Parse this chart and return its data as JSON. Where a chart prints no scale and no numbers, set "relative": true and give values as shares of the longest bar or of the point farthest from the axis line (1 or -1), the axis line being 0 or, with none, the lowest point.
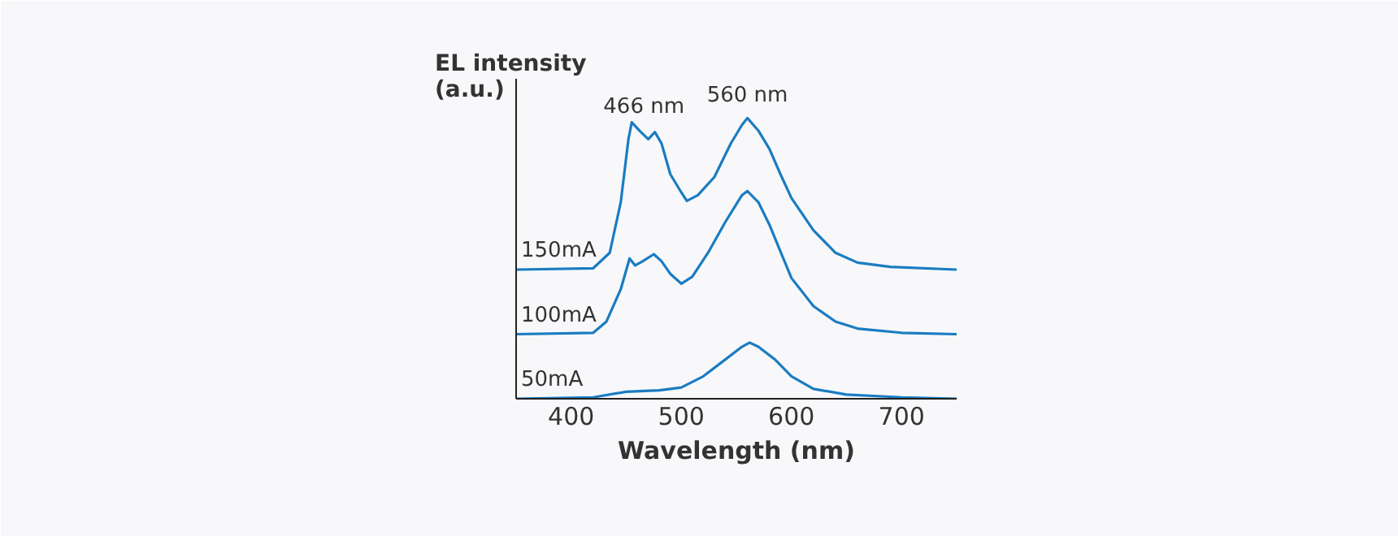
{
  "chart_data": {
    "type": "line",
    "relative": true,
    "xlabel": "Wavelength (nm)",
    "ylabel": "EL intensity\n(a.u.)",
    "xlim": [
      350,
      750
    ],
    "xticks": [
      400,
      500,
      600,
      700
    ],
    "tick_labels": "x",
    "grid": false,
    "legend": false,
    "marker": "none",
    "line_style": "solid",
    "annotations": [
      {
        "text": "466 nm",
        "x": 466,
        "y": 0.96
      },
      {
        "text": "560 nm",
        "x": 560,
        "y": 1.0
      }
    ],
    "series": [
      {
        "name": "150mA",
        "color": "#1a7cc2",
        "x": [
          350,
          420,
          435,
          445,
          452,
          455,
          462,
          470,
          476,
          482,
          490,
          500,
          505,
          515,
          530,
          545,
          555,
          560,
          570,
          580,
          590,
          600,
          620,
          640,
          660,
          690,
          750
        ],
        "values": [
          0.46,
          0.465,
          0.52,
          0.7,
          0.925,
          0.985,
          0.955,
          0.925,
          0.95,
          0.91,
          0.8,
          0.735,
          0.705,
          0.725,
          0.79,
          0.91,
          0.975,
          1.0,
          0.955,
          0.89,
          0.8,
          0.715,
          0.6,
          0.52,
          0.485,
          0.47,
          0.46
        ]
      },
      {
        "name": "100mA",
        "color": "#1a7cc2",
        "x": [
          350,
          420,
          432,
          445,
          453,
          458,
          465,
          475,
          482,
          490,
          500,
          510,
          525,
          540,
          555,
          560,
          570,
          580,
          590,
          600,
          620,
          640,
          660,
          700,
          750
        ],
        "values": [
          0.23,
          0.235,
          0.275,
          0.39,
          0.5,
          0.475,
          0.49,
          0.515,
          0.49,
          0.445,
          0.41,
          0.435,
          0.525,
          0.63,
          0.725,
          0.74,
          0.7,
          0.62,
          0.525,
          0.43,
          0.33,
          0.275,
          0.25,
          0.235,
          0.23
        ]
      },
      {
        "name": "50mA",
        "color": "#1a7cc2",
        "x": [
          350,
          420,
          450,
          480,
          500,
          520,
          540,
          555,
          562,
          570,
          585,
          600,
          620,
          650,
          700,
          750
        ],
        "values": [
          0,
          0.005,
          0.025,
          0.03,
          0.04,
          0.08,
          0.14,
          0.185,
          0.2,
          0.185,
          0.14,
          0.08,
          0.035,
          0.015,
          0.005,
          0
        ]
      }
    ]
  }
}
